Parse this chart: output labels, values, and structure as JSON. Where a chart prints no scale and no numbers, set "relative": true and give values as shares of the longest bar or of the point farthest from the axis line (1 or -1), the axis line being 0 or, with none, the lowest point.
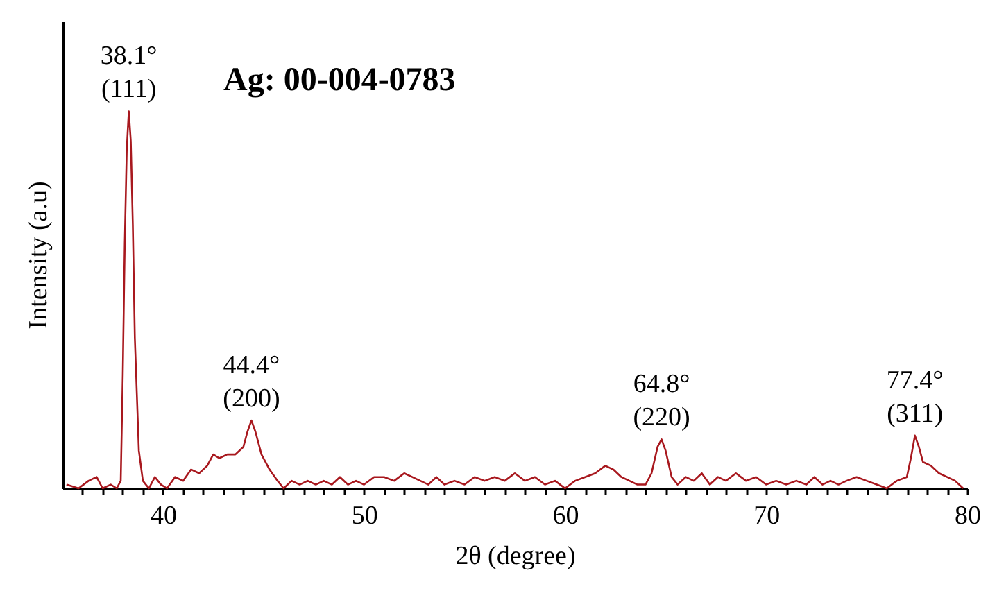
{
  "chart_data": {
    "type": "line",
    "title": "Ag: 00-004-0783",
    "xlabel": "2θ (degree)",
    "ylabel": "Intensity (a.u)",
    "relative": true,
    "grid": false,
    "marker": "none",
    "line_style": "solid",
    "xlim": [
      35,
      80
    ],
    "xticks": [
      {
        "value": 36,
        "label": null
      },
      {
        "value": 37,
        "label": null
      },
      {
        "value": 38,
        "label": null
      },
      {
        "value": 39,
        "label": null
      },
      40,
      {
        "value": 41,
        "label": null
      },
      {
        "value": 42,
        "label": null
      },
      {
        "value": 43,
        "label": null
      },
      {
        "value": 44,
        "label": null
      },
      {
        "value": 45,
        "label": null
      },
      {
        "value": 46,
        "label": null
      },
      {
        "value": 47,
        "label": null
      },
      {
        "value": 48,
        "label": null
      },
      {
        "value": 49,
        "label": null
      },
      50,
      {
        "value": 51,
        "label": null
      },
      {
        "value": 52,
        "label": null
      },
      {
        "value": 53,
        "label": null
      },
      {
        "value": 54,
        "label": null
      },
      {
        "value": 55,
        "label": null
      },
      {
        "value": 56,
        "label": null
      },
      {
        "value": 57,
        "label": null
      },
      {
        "value": 58,
        "label": null
      },
      {
        "value": 59,
        "label": null
      },
      60,
      {
        "value": 61,
        "label": null
      },
      {
        "value": 62,
        "label": null
      },
      {
        "value": 63,
        "label": null
      },
      {
        "value": 64,
        "label": null
      },
      {
        "value": 65,
        "label": null
      },
      {
        "value": 66,
        "label": null
      },
      {
        "value": 67,
        "label": null
      },
      {
        "value": 68,
        "label": null
      },
      {
        "value": 69,
        "label": null
      },
      70,
      {
        "value": 71,
        "label": null
      },
      {
        "value": 72,
        "label": null
      },
      {
        "value": 73,
        "label": null
      },
      {
        "value": 74,
        "label": null
      },
      {
        "value": 75,
        "label": null
      },
      {
        "value": 76,
        "label": null
      },
      {
        "value": 77,
        "label": null
      },
      {
        "value": 78,
        "label": null
      },
      {
        "value": 79,
        "label": null
      },
      80
    ],
    "series": [
      {
        "color": "#a8181e",
        "x": [
          35.2,
          35.8,
          36.3,
          36.7,
          37.0,
          37.4,
          37.7,
          37.9,
          38.0,
          38.1,
          38.2,
          38.3,
          38.4,
          38.5,
          38.6,
          38.8,
          39.0,
          39.3,
          39.6,
          39.9,
          40.2,
          40.6,
          41.0,
          41.4,
          41.8,
          42.2,
          42.5,
          42.8,
          43.2,
          43.6,
          44.0,
          44.2,
          44.4,
          44.6,
          44.9,
          45.3,
          45.7,
          46.0,
          46.4,
          46.8,
          47.2,
          47.6,
          48.0,
          48.4,
          48.8,
          49.2,
          49.6,
          50.0,
          50.5,
          51.0,
          51.5,
          52.0,
          52.4,
          52.8,
          53.2,
          53.6,
          54.0,
          54.5,
          55.0,
          55.5,
          56.0,
          56.5,
          57.0,
          57.5,
          58.0,
          58.5,
          59.0,
          59.5,
          60.0,
          60.5,
          61.0,
          61.5,
          62.0,
          62.4,
          62.8,
          63.2,
          63.6,
          64.0,
          64.3,
          64.6,
          64.8,
          65.0,
          65.3,
          65.6,
          66.0,
          66.4,
          66.8,
          67.2,
          67.6,
          68.0,
          68.5,
          69.0,
          69.5,
          70.0,
          70.5,
          71.0,
          71.5,
          72.0,
          72.4,
          72.8,
          73.2,
          73.6,
          74.0,
          74.5,
          75.0,
          75.5,
          76.0,
          76.5,
          77.0,
          77.2,
          77.4,
          77.6,
          77.8,
          78.2,
          78.6,
          79.0,
          79.4,
          79.8
        ],
        "values": [
          0.01,
          0.0,
          0.02,
          0.03,
          0.0,
          0.01,
          0.0,
          0.02,
          0.3,
          0.65,
          0.9,
          1.0,
          0.92,
          0.7,
          0.4,
          0.1,
          0.02,
          0.0,
          0.03,
          0.01,
          0.0,
          0.03,
          0.02,
          0.05,
          0.04,
          0.06,
          0.09,
          0.08,
          0.09,
          0.09,
          0.11,
          0.15,
          0.18,
          0.15,
          0.09,
          0.05,
          0.02,
          0.0,
          0.02,
          0.01,
          0.02,
          0.01,
          0.02,
          0.01,
          0.03,
          0.01,
          0.02,
          0.01,
          0.03,
          0.03,
          0.02,
          0.04,
          0.03,
          0.02,
          0.01,
          0.03,
          0.01,
          0.02,
          0.01,
          0.03,
          0.02,
          0.03,
          0.02,
          0.04,
          0.02,
          0.03,
          0.01,
          0.02,
          0.0,
          0.02,
          0.03,
          0.04,
          0.06,
          0.05,
          0.03,
          0.02,
          0.01,
          0.01,
          0.04,
          0.11,
          0.13,
          0.1,
          0.03,
          0.01,
          0.03,
          0.02,
          0.04,
          0.01,
          0.03,
          0.02,
          0.04,
          0.02,
          0.03,
          0.01,
          0.02,
          0.01,
          0.02,
          0.01,
          0.03,
          0.01,
          0.02,
          0.01,
          0.02,
          0.03,
          0.02,
          0.01,
          0.0,
          0.02,
          0.03,
          0.08,
          0.14,
          0.11,
          0.07,
          0.06,
          0.04,
          0.03,
          0.02,
          0.0
        ]
      }
    ],
    "annotations": [
      {
        "text": "38.1°\n(111)",
        "x": 38.3,
        "y": 1.0
      },
      {
        "text": "44.4°\n(200)",
        "x": 44.4,
        "y": 0.18
      },
      {
        "text": "64.8°\n(220)",
        "x": 64.8,
        "y": 0.13
      },
      {
        "text": "77.4°\n(311)",
        "x": 77.4,
        "y": 0.14
      }
    ]
  }
}
